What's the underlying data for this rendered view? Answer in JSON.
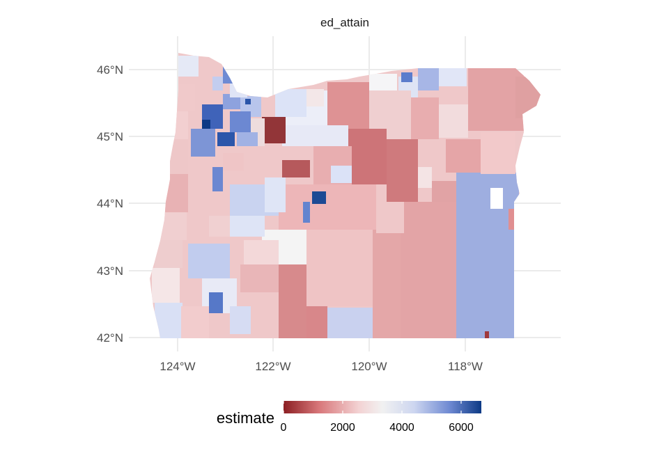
{
  "panel_title": "ed_attain",
  "axes": {
    "lat_ticks": [
      "46°N",
      "45°N",
      "44°N",
      "43°N",
      "42°N"
    ],
    "lon_ticks": [
      "124°W",
      "122°W",
      "120°W",
      "118°W"
    ]
  },
  "legend": {
    "title": "estimate",
    "ticks": [
      "0",
      "2000",
      "4000",
      "6000"
    ],
    "scale_min": 0,
    "scale_max": 6700,
    "colors": [
      "#8b1e22",
      "#d8777a",
      "#f3d2d3",
      "#f1f1f1",
      "#cdd6f0",
      "#6e89d2",
      "#0d3a85"
    ]
  },
  "map": {
    "region": "Oregon",
    "scheme": "diverging red-white-blue"
  }
}
